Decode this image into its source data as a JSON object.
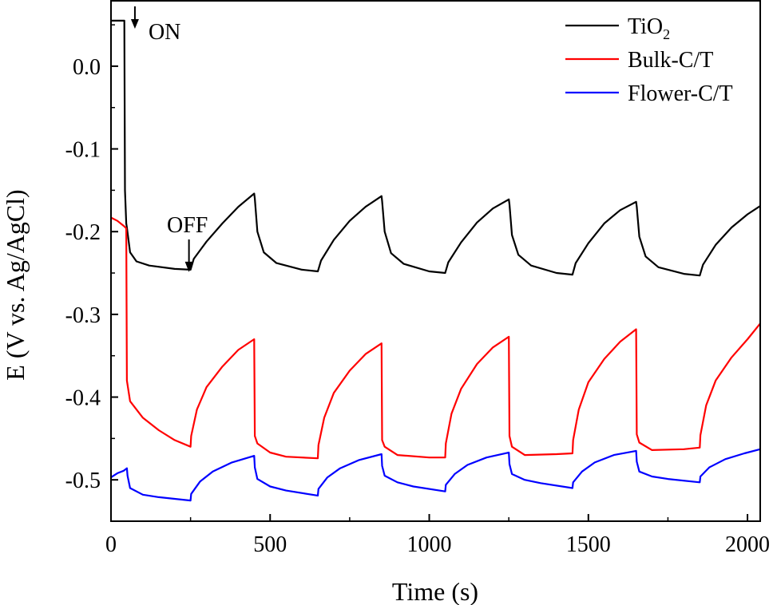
{
  "chart_data": {
    "type": "line",
    "title": "",
    "xlabel": "Time (s)",
    "ylabel": "E (V vs. Ag/AgCl)",
    "xlim": [
      0,
      2040
    ],
    "ylim": [
      -0.55,
      0.08
    ],
    "x_ticks": [
      0,
      500,
      1000,
      1500,
      2000
    ],
    "x_tick_labels": [
      "0",
      "500",
      "1000",
      "1500",
      "2000"
    ],
    "y_ticks": [
      0.0,
      -0.1,
      -0.2,
      -0.3,
      -0.4,
      -0.5
    ],
    "y_tick_labels": [
      "0.0",
      "-0.1",
      "-0.2",
      "-0.3",
      "-0.4",
      "-0.5"
    ],
    "legend_position": "top-right",
    "annotations": [
      {
        "text": "ON",
        "x": 40,
        "y": 0.06
      },
      {
        "text": "OFF",
        "x": 250,
        "y": -0.245
      }
    ],
    "series": [
      {
        "name": "TiO2",
        "legend_main": "TiO",
        "legend_sub": "2",
        "color": "#000000",
        "points": [
          [
            0,
            0.055
          ],
          [
            40,
            0.055
          ],
          [
            42,
            0.055
          ],
          [
            44,
            -0.15
          ],
          [
            48,
            -0.19
          ],
          [
            50,
            -0.195
          ],
          [
            60,
            -0.225
          ],
          [
            80,
            -0.236
          ],
          [
            120,
            -0.241
          ],
          [
            200,
            -0.245
          ],
          [
            250,
            -0.246
          ],
          [
            260,
            -0.233
          ],
          [
            300,
            -0.212
          ],
          [
            350,
            -0.19
          ],
          [
            400,
            -0.17
          ],
          [
            450,
            -0.154
          ],
          [
            452,
            -0.16
          ],
          [
            460,
            -0.2
          ],
          [
            480,
            -0.225
          ],
          [
            520,
            -0.238
          ],
          [
            600,
            -0.246
          ],
          [
            650,
            -0.248
          ],
          [
            660,
            -0.235
          ],
          [
            700,
            -0.21
          ],
          [
            750,
            -0.187
          ],
          [
            800,
            -0.17
          ],
          [
            850,
            -0.157
          ],
          [
            852,
            -0.163
          ],
          [
            860,
            -0.2
          ],
          [
            880,
            -0.226
          ],
          [
            920,
            -0.239
          ],
          [
            1000,
            -0.248
          ],
          [
            1050,
            -0.25
          ],
          [
            1060,
            -0.237
          ],
          [
            1100,
            -0.213
          ],
          [
            1150,
            -0.189
          ],
          [
            1200,
            -0.172
          ],
          [
            1250,
            -0.161
          ],
          [
            1252,
            -0.167
          ],
          [
            1260,
            -0.204
          ],
          [
            1280,
            -0.228
          ],
          [
            1320,
            -0.241
          ],
          [
            1400,
            -0.25
          ],
          [
            1450,
            -0.252
          ],
          [
            1460,
            -0.238
          ],
          [
            1500,
            -0.214
          ],
          [
            1550,
            -0.19
          ],
          [
            1600,
            -0.174
          ],
          [
            1650,
            -0.164
          ],
          [
            1652,
            -0.17
          ],
          [
            1660,
            -0.206
          ],
          [
            1680,
            -0.23
          ],
          [
            1720,
            -0.243
          ],
          [
            1800,
            -0.251
          ],
          [
            1850,
            -0.253
          ],
          [
            1860,
            -0.24
          ],
          [
            1900,
            -0.216
          ],
          [
            1950,
            -0.195
          ],
          [
            2000,
            -0.179
          ],
          [
            2040,
            -0.169
          ]
        ]
      },
      {
        "name": "Bulk-C/T",
        "color": "#ff0000",
        "points": [
          [
            0,
            -0.183
          ],
          [
            20,
            -0.187
          ],
          [
            40,
            -0.193
          ],
          [
            48,
            -0.196
          ],
          [
            50,
            -0.38
          ],
          [
            60,
            -0.405
          ],
          [
            100,
            -0.425
          ],
          [
            150,
            -0.44
          ],
          [
            200,
            -0.452
          ],
          [
            250,
            -0.46
          ],
          [
            252,
            -0.447
          ],
          [
            270,
            -0.415
          ],
          [
            300,
            -0.388
          ],
          [
            350,
            -0.363
          ],
          [
            400,
            -0.343
          ],
          [
            450,
            -0.33
          ],
          [
            452,
            -0.447
          ],
          [
            460,
            -0.456
          ],
          [
            500,
            -0.467
          ],
          [
            550,
            -0.472
          ],
          [
            650,
            -0.474
          ],
          [
            652,
            -0.458
          ],
          [
            670,
            -0.425
          ],
          [
            700,
            -0.395
          ],
          [
            750,
            -0.368
          ],
          [
            800,
            -0.348
          ],
          [
            850,
            -0.335
          ],
          [
            852,
            -0.452
          ],
          [
            860,
            -0.46
          ],
          [
            900,
            -0.47
          ],
          [
            1000,
            -0.473
          ],
          [
            1050,
            -0.473
          ],
          [
            1052,
            -0.456
          ],
          [
            1070,
            -0.42
          ],
          [
            1100,
            -0.39
          ],
          [
            1150,
            -0.36
          ],
          [
            1200,
            -0.34
          ],
          [
            1250,
            -0.327
          ],
          [
            1252,
            -0.447
          ],
          [
            1260,
            -0.46
          ],
          [
            1300,
            -0.47
          ],
          [
            1400,
            -0.469
          ],
          [
            1450,
            -0.468
          ],
          [
            1452,
            -0.452
          ],
          [
            1470,
            -0.415
          ],
          [
            1500,
            -0.382
          ],
          [
            1550,
            -0.354
          ],
          [
            1600,
            -0.333
          ],
          [
            1650,
            -0.318
          ],
          [
            1652,
            -0.445
          ],
          [
            1660,
            -0.455
          ],
          [
            1700,
            -0.464
          ],
          [
            1800,
            -0.463
          ],
          [
            1850,
            -0.461
          ],
          [
            1852,
            -0.446
          ],
          [
            1870,
            -0.41
          ],
          [
            1900,
            -0.38
          ],
          [
            1950,
            -0.352
          ],
          [
            2000,
            -0.33
          ],
          [
            2040,
            -0.311
          ]
        ]
      },
      {
        "name": "Flower-C/T",
        "color": "#0000ff",
        "points": [
          [
            0,
            -0.497
          ],
          [
            20,
            -0.492
          ],
          [
            40,
            -0.489
          ],
          [
            50,
            -0.486
          ],
          [
            52,
            -0.495
          ],
          [
            60,
            -0.51
          ],
          [
            100,
            -0.518
          ],
          [
            150,
            -0.521
          ],
          [
            200,
            -0.523
          ],
          [
            250,
            -0.525
          ],
          [
            252,
            -0.517
          ],
          [
            280,
            -0.502
          ],
          [
            320,
            -0.49
          ],
          [
            380,
            -0.479
          ],
          [
            450,
            -0.471
          ],
          [
            452,
            -0.485
          ],
          [
            460,
            -0.499
          ],
          [
            500,
            -0.508
          ],
          [
            550,
            -0.513
          ],
          [
            650,
            -0.519
          ],
          [
            652,
            -0.511
          ],
          [
            680,
            -0.497
          ],
          [
            720,
            -0.486
          ],
          [
            780,
            -0.476
          ],
          [
            850,
            -0.469
          ],
          [
            852,
            -0.483
          ],
          [
            860,
            -0.495
          ],
          [
            900,
            -0.503
          ],
          [
            950,
            -0.508
          ],
          [
            1050,
            -0.514
          ],
          [
            1052,
            -0.506
          ],
          [
            1080,
            -0.493
          ],
          [
            1120,
            -0.482
          ],
          [
            1180,
            -0.473
          ],
          [
            1250,
            -0.467
          ],
          [
            1252,
            -0.481
          ],
          [
            1260,
            -0.493
          ],
          [
            1300,
            -0.5
          ],
          [
            1350,
            -0.504
          ],
          [
            1450,
            -0.51
          ],
          [
            1452,
            -0.503
          ],
          [
            1480,
            -0.49
          ],
          [
            1520,
            -0.479
          ],
          [
            1580,
            -0.47
          ],
          [
            1650,
            -0.465
          ],
          [
            1652,
            -0.478
          ],
          [
            1660,
            -0.49
          ],
          [
            1700,
            -0.496
          ],
          [
            1750,
            -0.499
          ],
          [
            1850,
            -0.503
          ],
          [
            1852,
            -0.496
          ],
          [
            1880,
            -0.485
          ],
          [
            1930,
            -0.475
          ],
          [
            1990,
            -0.468
          ],
          [
            2040,
            -0.463
          ]
        ]
      }
    ]
  }
}
